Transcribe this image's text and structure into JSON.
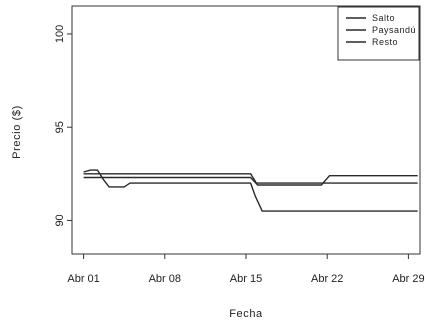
{
  "chart_data": {
    "type": "line",
    "xlabel": "Fecha",
    "ylabel": "Precio ($)",
    "x_ticks": [
      {
        "label": "Abr 01",
        "day": 1
      },
      {
        "label": "Abr 08",
        "day": 8
      },
      {
        "label": "Abr 15",
        "day": 15
      },
      {
        "label": "Abr 22",
        "day": 22
      },
      {
        "label": "Abr 29",
        "day": 29
      }
    ],
    "y_ticks": [
      {
        "label": "90",
        "value": 90
      },
      {
        "label": "95",
        "value": 95
      },
      {
        "label": "100",
        "value": 100
      }
    ],
    "xlim": [
      "Abr 00",
      "Abr 30"
    ],
    "ylim": [
      88.2,
      101.5
    ],
    "grid": false,
    "legend_position": "top-right",
    "series": [
      {
        "name": "Salto",
        "color": "#2a2a2a",
        "points": [
          [
            1,
            92.6
          ],
          [
            1.6,
            92.7
          ],
          [
            2.2,
            92.7
          ],
          [
            2.7,
            92.2
          ],
          [
            3.2,
            91.8
          ],
          [
            4.5,
            91.8
          ],
          [
            5,
            92.0
          ],
          [
            15.4,
            92.0
          ],
          [
            15.8,
            91.3
          ],
          [
            16.4,
            90.5
          ],
          [
            29.8,
            90.5
          ]
        ]
      },
      {
        "name": "Paysandú",
        "color": "#2a2a2a",
        "points": [
          [
            1,
            92.5
          ],
          [
            15.4,
            92.5
          ],
          [
            15.9,
            92.0
          ],
          [
            29.8,
            92.0
          ]
        ]
      },
      {
        "name": "Resto",
        "color": "#2a2a2a",
        "points": [
          [
            1,
            92.3
          ],
          [
            15.4,
            92.3
          ],
          [
            16,
            91.9
          ],
          [
            21.5,
            91.9
          ],
          [
            22.2,
            92.4
          ],
          [
            29.8,
            92.4
          ]
        ]
      }
    ]
  },
  "legend": {
    "items": [
      "Salto",
      "Paysandú",
      "Resto"
    ]
  }
}
